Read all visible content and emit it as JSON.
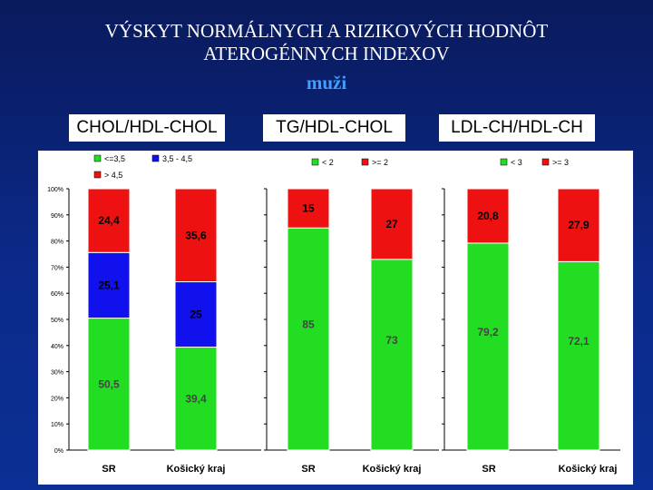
{
  "title_line1": "VÝSKYT NORMÁLNYCH A RIZIKOVÝCH HODNÔT",
  "title_line2": "ATEROGÉNNYCH INDEXOV",
  "subtitle": "muži",
  "chart_data": [
    {
      "type": "bar",
      "stacked": true,
      "title": "CHOL/HDL-CHOL",
      "categories": [
        "SR",
        "Košický kraj"
      ],
      "ylim": [
        0,
        100
      ],
      "yticks": [
        "0%",
        "10%",
        "20%",
        "30%",
        "40%",
        "50%",
        "60%",
        "70%",
        "80%",
        "90%",
        "100%"
      ],
      "legend_position": "top",
      "series": [
        {
          "name": "<=3,5",
          "color": "#22dd22",
          "values": [
            50.5,
            39.4
          ],
          "labels": [
            "50,5",
            "39,4"
          ]
        },
        {
          "name": "3,5 - 4,5",
          "color": "#1111ee",
          "values": [
            25.1,
            25
          ],
          "labels": [
            "25,1",
            "25"
          ]
        },
        {
          "name": "> 4,5",
          "color": "#ee1111",
          "values": [
            24.4,
            35.6
          ],
          "labels": [
            "24,4",
            "35,6"
          ]
        }
      ]
    },
    {
      "type": "bar",
      "stacked": true,
      "title": "TG/HDL-CHOL",
      "categories": [
        "SR",
        "Košický kraj"
      ],
      "ylim": [
        0,
        100
      ],
      "legend_position": "top",
      "series": [
        {
          "name": "< 2",
          "color": "#22dd22",
          "values": [
            85,
            73
          ],
          "labels": [
            "85",
            "73"
          ]
        },
        {
          "name": ">= 2",
          "color": "#ee1111",
          "values": [
            15,
            27
          ],
          "labels": [
            "15",
            "27"
          ]
        }
      ]
    },
    {
      "type": "bar",
      "stacked": true,
      "title": "LDL-CH/HDL-CH",
      "categories": [
        "SR",
        "Košický kraj"
      ],
      "ylim": [
        0,
        100
      ],
      "legend_position": "top",
      "series": [
        {
          "name": "< 3",
          "color": "#22dd22",
          "values": [
            79.2,
            72.1
          ],
          "labels": [
            "79,2",
            "72,1"
          ]
        },
        {
          "name": ">= 3",
          "color": "#ee1111",
          "values": [
            20.8,
            27.9
          ],
          "labels": [
            "20,8",
            "27,9"
          ]
        }
      ]
    }
  ]
}
